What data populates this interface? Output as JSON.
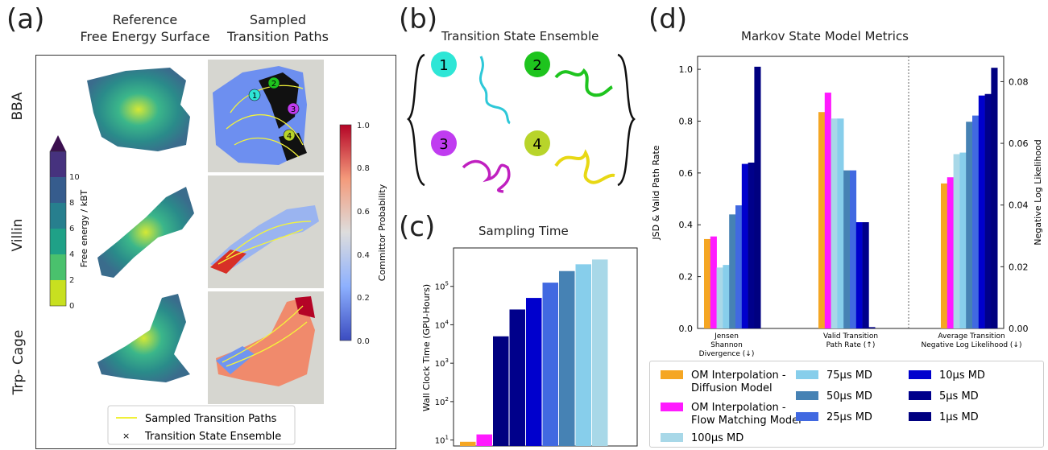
{
  "panels": {
    "a": {
      "label": "(a)",
      "col_headers": [
        "Reference\nFree Energy Surface",
        "Sampled\nTransition Paths"
      ],
      "rows": [
        "BBA",
        "Villin",
        "Trp- Cage"
      ],
      "fe_colorbar": {
        "label": "Free energy / kBT",
        "ticks": [
          "0",
          "2",
          "4",
          "6",
          "8",
          "10"
        ]
      },
      "committor_colorbar": {
        "label": "Committor Probability",
        "ticks": [
          "0.0",
          "0.2",
          "0.4",
          "0.6",
          "0.8",
          "1.0"
        ]
      },
      "markers": [
        "1",
        "2",
        "3",
        "4"
      ],
      "legend": [
        "Sampled Transition Paths",
        "Transition State Ensemble"
      ]
    },
    "b": {
      "label": "(b)",
      "title": "Transition State Ensemble",
      "structures": [
        "1",
        "2",
        "3",
        "4"
      ]
    },
    "c": {
      "label": "(c)",
      "title": "Sampling Time"
    },
    "d": {
      "label": "(d)",
      "title": "Markov State Model Metrics"
    }
  },
  "colors": {
    "om_diffusion": "#f5a623",
    "om_flow": "#ff1aff",
    "md100": "#a8d8e8",
    "md75": "#87ceeb",
    "md50": "#4682b4",
    "md25": "#4169e1",
    "md10": "#0000cd",
    "md5": "#00008b",
    "md1": "#000080",
    "marker1": "#2ee6d6",
    "marker2": "#1ec41e",
    "marker3": "#c03cf0",
    "marker4": "#b8d42a"
  },
  "chart_data": [
    {
      "type": "bar",
      "title": "Sampling Time",
      "ylabel": "Wall Clock Time (GPU-Hours)",
      "yscale": "log",
      "ylim": [
        7,
        1000000
      ],
      "yticks": [
        "10^1",
        "10^2",
        "10^3",
        "10^4",
        "10^5"
      ],
      "series": [
        {
          "name": "OM Interpolation - Diffusion Model",
          "values": [
            9
          ]
        },
        {
          "name": "OM Interpolation - Flow Matching Model",
          "values": [
            14
          ]
        },
        {
          "name": "1µs MD",
          "values": [
            5000
          ]
        },
        {
          "name": "5µs MD",
          "values": [
            25000
          ]
        },
        {
          "name": "10µs MD",
          "values": [
            50000
          ]
        },
        {
          "name": "25µs MD",
          "values": [
            125000
          ]
        },
        {
          "name": "50µs MD",
          "values": [
            250000
          ]
        },
        {
          "name": "75µs MD",
          "values": [
            375000
          ]
        },
        {
          "name": "100µs MD",
          "values": [
            500000
          ]
        }
      ]
    },
    {
      "type": "bar",
      "title": "Markov State Model Metrics",
      "ylabel": "JSD & Valid Path Rate",
      "y2label": "Negative Log Likelihood",
      "categories": [
        "Jensen\nShannon\nDivergence (↓)",
        "Valid Transition\nPath Rate (↑)",
        "Average Transition\nNegative Log Likelihood (↓)"
      ],
      "ylim": [
        0,
        1.05
      ],
      "yticks": [
        "0.0",
        "0.2",
        "0.4",
        "0.6",
        "0.8",
        "1.0"
      ],
      "y2lim": [
        0,
        0.0882
      ],
      "y2ticks": [
        "0.00",
        "0.02",
        "0.04",
        "0.06",
        "0.08"
      ],
      "series": [
        {
          "name": "OM Interpolation - Diffusion Model",
          "values": [
            0.345,
            0.835,
            0.047
          ]
        },
        {
          "name": "OM Interpolation - Flow Matching Model",
          "values": [
            0.355,
            0.91,
            0.049
          ]
        },
        {
          "name": "100µs MD",
          "values": [
            0.235,
            0.81,
            0.0565
          ]
        },
        {
          "name": "75µs MD",
          "values": [
            0.245,
            0.81,
            0.057
          ]
        },
        {
          "name": "50µs MD",
          "values": [
            0.44,
            0.61,
            0.067
          ]
        },
        {
          "name": "25µs MD",
          "values": [
            0.475,
            0.61,
            0.069
          ]
        },
        {
          "name": "10µs MD",
          "values": [
            0.635,
            0.41,
            0.0755
          ]
        },
        {
          "name": "5µs MD",
          "values": [
            0.64,
            0.41,
            0.076
          ]
        },
        {
          "name": "1µs MD",
          "values": [
            1.01,
            0.005,
            0.0845
          ]
        }
      ],
      "legend": [
        "OM Interpolation -\nDiffusion Model",
        "OM Interpolation -\nFlow Matching Model",
        "100µs MD",
        "75µs MD",
        "50µs MD",
        "25µs MD",
        "10µs MD",
        "5µs MD",
        "1µs MD"
      ]
    }
  ]
}
